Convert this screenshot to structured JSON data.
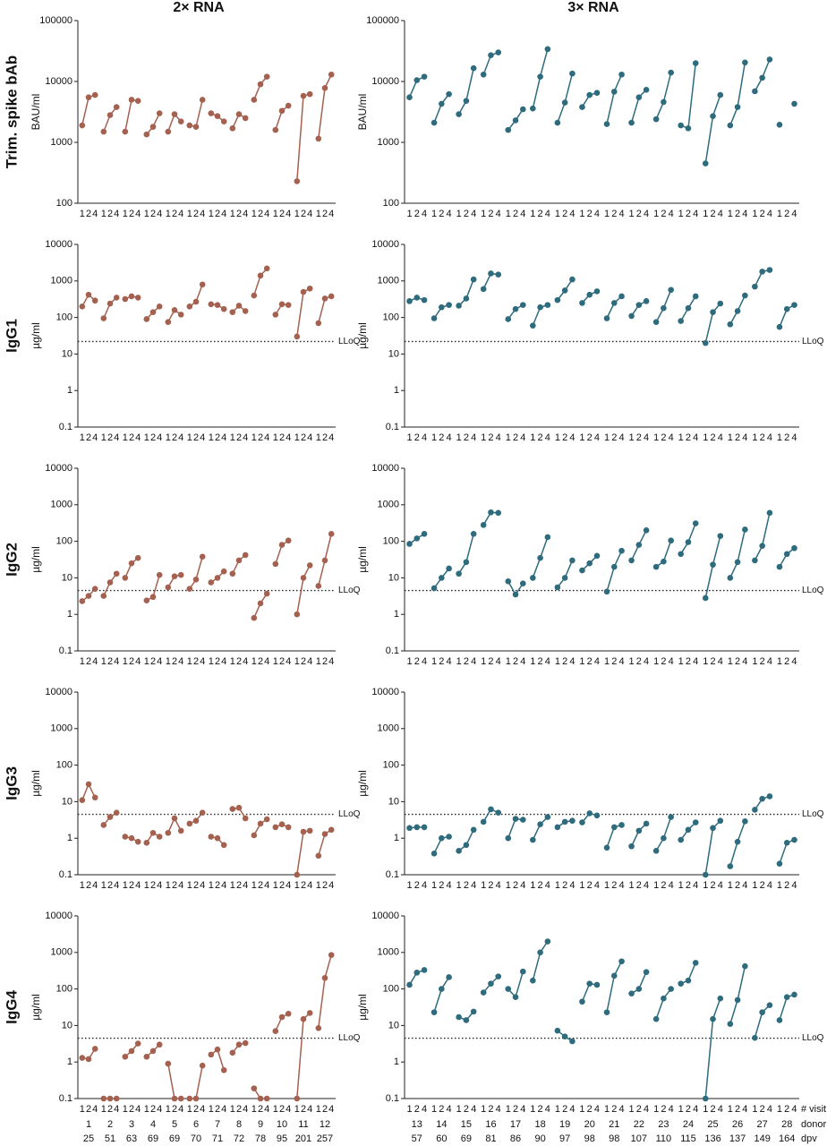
{
  "columns": [
    {
      "title": "2× RNA",
      "donors": [
        1,
        2,
        3,
        4,
        5,
        6,
        7,
        8,
        9,
        10,
        11,
        12
      ],
      "dpv": [
        25,
        51,
        63,
        69,
        69,
        70,
        71,
        72,
        78,
        95,
        201,
        257
      ]
    },
    {
      "title": "3× RNA",
      "donors": [
        13,
        14,
        15,
        16,
        17,
        18,
        19,
        20,
        21,
        22,
        23,
        24,
        25,
        26,
        27,
        28
      ],
      "dpv": [
        57,
        60,
        69,
        81,
        86,
        90,
        97,
        98,
        98,
        107,
        110,
        115,
        136,
        137,
        149,
        164
      ]
    }
  ],
  "rows": [
    "Trim. spike bAb",
    "IgG1",
    "IgG2",
    "IgG3",
    "IgG4"
  ],
  "x_footer": {
    "visit": "# visit",
    "donor": "donor",
    "dpv": "dpv"
  },
  "chart_data": [
    {
      "type": "line",
      "ylabel": "BAU/ml",
      "log_scale": true,
      "ylim": [
        100,
        100000
      ],
      "yticks": [
        100,
        1000,
        10000,
        100000
      ],
      "categories": [
        "1",
        "2",
        "4"
      ],
      "color": "#a5614f",
      "series": [
        {
          "values": [
            1900,
            5500,
            6000
          ]
        },
        {
          "values": [
            1500,
            2800,
            3800
          ]
        },
        {
          "values": [
            1500,
            5000,
            4800
          ]
        },
        {
          "values": [
            1350,
            1800,
            3000
          ]
        },
        {
          "values": [
            1500,
            2900,
            2200
          ]
        },
        {
          "values": [
            1900,
            1800,
            5000
          ]
        },
        {
          "values": [
            3000,
            2700,
            2200
          ]
        },
        {
          "values": [
            1700,
            2900,
            2500
          ]
        },
        {
          "values": [
            5000,
            9000,
            12000
          ]
        },
        {
          "values": [
            1600,
            3300,
            4000
          ]
        },
        {
          "values": [
            230,
            5800,
            6200
          ]
        },
        {
          "values": [
            1150,
            7800,
            13000
          ]
        }
      ]
    },
    {
      "type": "line",
      "ylabel": "BAU/ml",
      "log_scale": true,
      "ylim": [
        100,
        100000
      ],
      "yticks": [
        100,
        1000,
        10000,
        100000
      ],
      "categories": [
        "1",
        "2",
        "4"
      ],
      "color": "#2e6b7d",
      "series": [
        {
          "values": [
            5500,
            10500,
            12000
          ]
        },
        {
          "values": [
            2100,
            4300,
            6200
          ]
        },
        {
          "values": [
            2900,
            4800,
            16500
          ]
        },
        {
          "values": [
            13000,
            27000,
            30000
          ]
        },
        {
          "values": [
            1600,
            2300,
            3500
          ]
        },
        {
          "values": [
            3600,
            12000,
            34000
          ]
        },
        {
          "values": [
            2100,
            4500,
            13500
          ]
        },
        {
          "values": [
            3800,
            6000,
            6500
          ]
        },
        {
          "values": [
            2000,
            6800,
            13000
          ]
        },
        {
          "values": [
            2100,
            5500,
            7300
          ]
        },
        {
          "values": [
            2400,
            4600,
            14000
          ]
        },
        {
          "values": [
            1900,
            1700,
            20000
          ]
        },
        {
          "values": [
            450,
            2700,
            6000
          ]
        },
        {
          "values": [
            1900,
            3800,
            20500
          ]
        },
        {
          "values": [
            6900,
            11500,
            23000
          ]
        },
        {
          "values": [
            1950,
            null,
            4300
          ]
        }
      ]
    },
    {
      "type": "line",
      "ylabel": "µg/ml",
      "log_scale": true,
      "ylim": [
        0.1,
        10000
      ],
      "yticks": [
        0.1,
        1,
        10,
        100,
        1000,
        10000
      ],
      "categories": [
        "1",
        "2",
        "4"
      ],
      "color": "#a5614f",
      "reference_line": {
        "value": 22,
        "label": "LLoQ"
      },
      "series": [
        {
          "values": [
            200,
            420,
            290
          ]
        },
        {
          "values": [
            95,
            240,
            350
          ]
        },
        {
          "values": [
            320,
            380,
            350
          ]
        },
        {
          "values": [
            90,
            140,
            200
          ]
        },
        {
          "values": [
            75,
            160,
            120
          ]
        },
        {
          "values": [
            200,
            270,
            800
          ]
        },
        {
          "values": [
            230,
            220,
            170
          ]
        },
        {
          "values": [
            140,
            210,
            150
          ]
        },
        {
          "values": [
            400,
            1400,
            2200
          ]
        },
        {
          "values": [
            120,
            230,
            220
          ]
        },
        {
          "values": [
            30,
            500,
            620
          ]
        },
        {
          "values": [
            70,
            330,
            380
          ]
        }
      ]
    },
    {
      "type": "line",
      "ylabel": "µg/ml",
      "log_scale": true,
      "ylim": [
        0.1,
        10000
      ],
      "yticks": [
        0.1,
        1,
        10,
        100,
        1000,
        10000
      ],
      "categories": [
        "1",
        "2",
        "4"
      ],
      "color": "#2e6b7d",
      "reference_line": {
        "value": 22,
        "label": "LLoQ"
      },
      "series": [
        {
          "values": [
            280,
            350,
            300
          ]
        },
        {
          "values": [
            95,
            190,
            220
          ]
        },
        {
          "values": [
            210,
            330,
            1100
          ]
        },
        {
          "values": [
            600,
            1600,
            1500
          ]
        },
        {
          "values": [
            90,
            170,
            220
          ]
        },
        {
          "values": [
            60,
            190,
            220
          ]
        },
        {
          "values": [
            300,
            550,
            1100
          ]
        },
        {
          "values": [
            250,
            420,
            520
          ]
        },
        {
          "values": [
            95,
            250,
            380
          ]
        },
        {
          "values": [
            110,
            220,
            280
          ]
        },
        {
          "values": [
            75,
            180,
            570
          ]
        },
        {
          "values": [
            80,
            180,
            380
          ]
        },
        {
          "values": [
            20,
            140,
            240
          ]
        },
        {
          "values": [
            65,
            150,
            400
          ]
        },
        {
          "values": [
            700,
            1800,
            2000
          ]
        },
        {
          "values": [
            55,
            170,
            220
          ]
        }
      ]
    },
    {
      "type": "line",
      "ylabel": "µg/ml",
      "log_scale": true,
      "ylim": [
        0.1,
        10000
      ],
      "yticks": [
        0.1,
        1,
        10,
        100,
        1000,
        10000
      ],
      "categories": [
        "1",
        "2",
        "4"
      ],
      "color": "#a5614f",
      "reference_line": {
        "value": 4.5,
        "label": "LLoQ"
      },
      "series": [
        {
          "values": [
            2.3,
            3.2,
            5
          ]
        },
        {
          "values": [
            3.2,
            7.5,
            13
          ]
        },
        {
          "values": [
            10,
            25,
            35
          ]
        },
        {
          "values": [
            2.4,
            3,
            12
          ]
        },
        {
          "values": [
            5.5,
            11,
            12
          ]
        },
        {
          "values": [
            5,
            9,
            38
          ]
        },
        {
          "values": [
            7.5,
            10,
            15
          ]
        },
        {
          "values": [
            13,
            30,
            42
          ]
        },
        {
          "values": [
            0.8,
            2,
            3.7
          ]
        },
        {
          "values": [
            24,
            80,
            105
          ]
        },
        {
          "values": [
            1,
            10,
            22
          ]
        },
        {
          "values": [
            6,
            30,
            160
          ]
        }
      ]
    },
    {
      "type": "line",
      "ylabel": "µg/ml",
      "log_scale": true,
      "ylim": [
        0.1,
        10000
      ],
      "yticks": [
        0.1,
        1,
        10,
        100,
        1000,
        10000
      ],
      "categories": [
        "1",
        "2",
        "4"
      ],
      "color": "#2e6b7d",
      "reference_line": {
        "value": 4.5,
        "label": "LLoQ"
      },
      "series": [
        {
          "values": [
            85,
            120,
            160
          ]
        },
        {
          "values": [
            5.2,
            10,
            18
          ]
        },
        {
          "values": [
            13,
            27,
            160
          ]
        },
        {
          "values": [
            280,
            620,
            600
          ]
        },
        {
          "values": [
            8,
            3.5,
            7
          ]
        },
        {
          "values": [
            10,
            35,
            130
          ]
        },
        {
          "values": [
            5.5,
            10,
            30
          ]
        },
        {
          "values": [
            16,
            25,
            40
          ]
        },
        {
          "values": [
            4.2,
            20,
            55
          ]
        },
        {
          "values": [
            30,
            80,
            200
          ]
        },
        {
          "values": [
            20,
            28,
            105
          ]
        },
        {
          "values": [
            45,
            95,
            310
          ]
        },
        {
          "values": [
            2.8,
            23,
            140
          ]
        },
        {
          "values": [
            10,
            27,
            210
          ]
        },
        {
          "values": [
            30,
            75,
            600
          ]
        },
        {
          "values": [
            20,
            45,
            65
          ]
        }
      ]
    },
    {
      "type": "line",
      "ylabel": "µg/ml",
      "log_scale": true,
      "ylim": [
        0.1,
        10000
      ],
      "yticks": [
        0.1,
        1,
        10,
        100,
        1000,
        10000
      ],
      "categories": [
        "1",
        "2",
        "4"
      ],
      "color": "#a5614f",
      "reference_line": {
        "value": 4.5,
        "label": "LLoQ"
      },
      "series": [
        {
          "values": [
            11,
            30,
            13
          ]
        },
        {
          "values": [
            2.3,
            3.8,
            5
          ]
        },
        {
          "values": [
            1.1,
            1,
            0.8
          ]
        },
        {
          "values": [
            0.75,
            1.4,
            1.1
          ]
        },
        {
          "values": [
            1.4,
            3.5,
            1.6
          ]
        },
        {
          "values": [
            2.5,
            3,
            5
          ]
        },
        {
          "values": [
            1.1,
            1,
            0.65
          ]
        },
        {
          "values": [
            6.3,
            6.8,
            3.5
          ]
        },
        {
          "values": [
            1.2,
            2.5,
            3.3
          ]
        },
        {
          "values": [
            2,
            2.4,
            2
          ]
        },
        {
          "values": [
            0.1,
            1.5,
            1.6
          ]
        },
        {
          "values": [
            0.33,
            1.3,
            1.7
          ]
        }
      ]
    },
    {
      "type": "line",
      "ylabel": "µg/ml",
      "log_scale": true,
      "ylim": [
        0.1,
        10000
      ],
      "yticks": [
        0.1,
        1,
        10,
        100,
        1000,
        10000
      ],
      "categories": [
        "1",
        "2",
        "4"
      ],
      "color": "#2e6b7d",
      "reference_line": {
        "value": 4.5,
        "label": "LLoQ"
      },
      "series": [
        {
          "values": [
            1.9,
            2,
            2
          ]
        },
        {
          "values": [
            0.38,
            1,
            1.1
          ]
        },
        {
          "values": [
            0.45,
            0.65,
            1.7
          ]
        },
        {
          "values": [
            2.8,
            6.2,
            5
          ]
        },
        {
          "values": [
            1,
            3.4,
            3.2
          ]
        },
        {
          "values": [
            0.9,
            2.4,
            3.8
          ]
        },
        {
          "values": [
            2,
            2.8,
            3
          ]
        },
        {
          "values": [
            2.7,
            4.8,
            4.2
          ]
        },
        {
          "values": [
            0.55,
            2,
            2.3
          ]
        },
        {
          "values": [
            0.6,
            1.6,
            2.5
          ]
        },
        {
          "values": [
            0.45,
            1,
            3.8
          ]
        },
        {
          "values": [
            0.9,
            1.7,
            2.7
          ]
        },
        {
          "values": [
            0.1,
            1.9,
            3
          ]
        },
        {
          "values": [
            0.17,
            0.8,
            2.9
          ]
        },
        {
          "values": [
            6,
            12,
            14
          ]
        },
        {
          "values": [
            0.2,
            0.75,
            0.9
          ]
        }
      ]
    },
    {
      "type": "line",
      "ylabel": "µg/ml",
      "log_scale": true,
      "ylim": [
        0.1,
        10000
      ],
      "yticks": [
        0.1,
        1,
        10,
        100,
        1000,
        10000
      ],
      "categories": [
        "1",
        "2",
        "4"
      ],
      "color": "#a5614f",
      "reference_line": {
        "value": 4.5,
        "label": "LLoQ"
      },
      "series": [
        {
          "values": [
            1.3,
            1.2,
            2.3
          ]
        },
        {
          "values": [
            0.1,
            0.1,
            0.1
          ]
        },
        {
          "values": [
            1.4,
            2,
            3.2
          ]
        },
        {
          "values": [
            1.4,
            2,
            3
          ]
        },
        {
          "values": [
            0.9,
            0.1,
            0.1
          ]
        },
        {
          "values": [
            0.1,
            0.1,
            0.8
          ]
        },
        {
          "values": [
            1.6,
            2.2,
            0.6
          ]
        },
        {
          "values": [
            1.8,
            3,
            3.3
          ]
        },
        {
          "values": [
            0.19,
            0.1,
            0.1
          ]
        },
        {
          "values": [
            7,
            17,
            21
          ]
        },
        {
          "values": [
            0.1,
            15,
            22
          ]
        },
        {
          "values": [
            8.5,
            200,
            850
          ]
        }
      ]
    },
    {
      "type": "line",
      "ylabel": "µg/ml",
      "log_scale": true,
      "ylim": [
        0.1,
        10000
      ],
      "yticks": [
        0.1,
        1,
        10,
        100,
        1000,
        10000
      ],
      "categories": [
        "1",
        "2",
        "4"
      ],
      "color": "#2e6b7d",
      "reference_line": {
        "value": 4.5,
        "label": "LLoQ"
      },
      "series": [
        {
          "values": [
            130,
            280,
            330
          ]
        },
        {
          "values": [
            23,
            100,
            210
          ]
        },
        {
          "values": [
            17,
            14,
            24
          ]
        },
        {
          "values": [
            80,
            140,
            220
          ]
        },
        {
          "values": [
            100,
            60,
            300
          ]
        },
        {
          "values": [
            170,
            1000,
            2000
          ]
        },
        {
          "values": [
            7.2,
            5,
            3.7
          ]
        },
        {
          "values": [
            45,
            140,
            130
          ]
        },
        {
          "values": [
            23,
            230,
            570
          ]
        },
        {
          "values": [
            75,
            100,
            290
          ]
        },
        {
          "values": [
            15,
            55,
            100
          ]
        },
        {
          "values": [
            140,
            170,
            520
          ]
        },
        {
          "values": [
            0.1,
            15,
            55
          ]
        },
        {
          "values": [
            11,
            50,
            420
          ]
        },
        {
          "values": [
            4.6,
            23,
            36
          ]
        },
        {
          "values": [
            14,
            60,
            70
          ]
        }
      ]
    }
  ]
}
